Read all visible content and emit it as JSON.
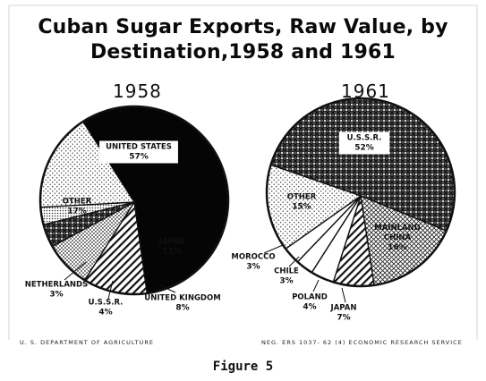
{
  "header": {
    "title_line1": "Cuban Sugar Exports, Raw Value, by",
    "title_line2": "Destination,1958 and 1961"
  },
  "footer": {
    "left": "U. S. DEPARTMENT OF AGRICULTURE",
    "right": "NEG. ERS 1037- 62 (4)   ECONOMIC RESEARCH SERVICE"
  },
  "caption": "Figure 5",
  "chart_data": [
    {
      "type": "pie",
      "year_label": "1958",
      "slices": [
        {
          "label": "UNITED STATES",
          "value": 57,
          "pct_text": "57%",
          "pattern": "solid-black"
        },
        {
          "label": "JAPAN",
          "value": 11,
          "pct_text": "11%",
          "pattern": "hatch"
        },
        {
          "label": "UNITED KINGDOM",
          "value": 8,
          "pct_text": "8%",
          "pattern": "dots"
        },
        {
          "label": "U.S.S.R.",
          "value": 4,
          "pct_text": "4%",
          "pattern": "cross-dark"
        },
        {
          "label": "NETHERLANDS",
          "value": 3,
          "pct_text": "3%",
          "pattern": "fine-dots"
        },
        {
          "label": "OTHER",
          "value": 17,
          "pct_text": "17%",
          "pattern": "sparse-dots"
        }
      ]
    },
    {
      "type": "pie",
      "year_label": "1961",
      "slices": [
        {
          "label": "U.S.S.R.",
          "value": 52,
          "pct_text": "52%",
          "pattern": "cross-dark"
        },
        {
          "label": "MAINLAND CHINA",
          "value": 16,
          "pct_text": "16%",
          "pattern": "crosshatch-light"
        },
        {
          "label": "JAPAN",
          "value": 7,
          "pct_text": "7%",
          "pattern": "hatch"
        },
        {
          "label": "POLAND",
          "value": 4,
          "pct_text": "4%",
          "pattern": "white"
        },
        {
          "label": "CHILE",
          "value": 3,
          "pct_text": "3%",
          "pattern": "white"
        },
        {
          "label": "MOROCCO",
          "value": 3,
          "pct_text": "3%",
          "pattern": "white"
        },
        {
          "label": "OTHER",
          "value": 15,
          "pct_text": "15%",
          "pattern": "sparse-dots"
        }
      ]
    }
  ]
}
